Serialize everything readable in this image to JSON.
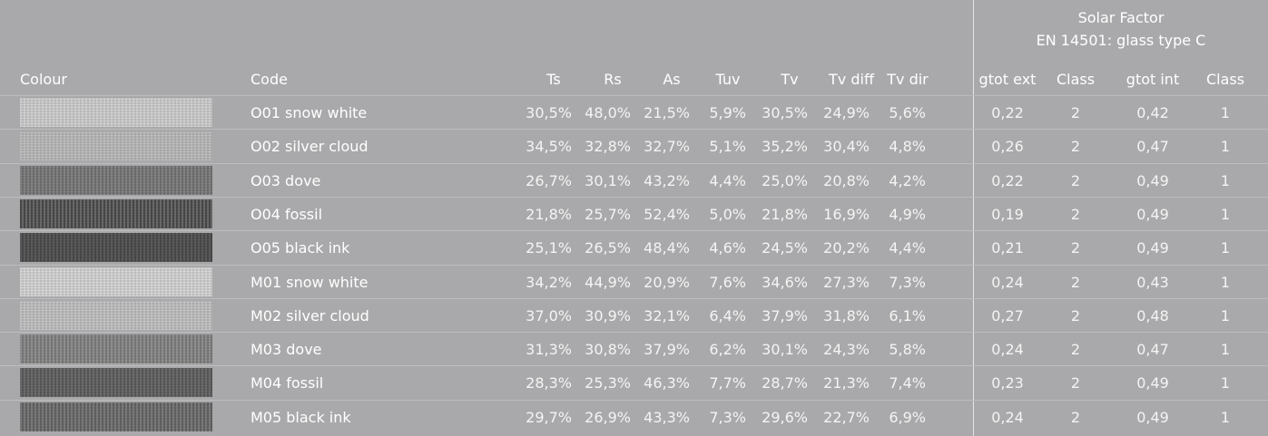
{
  "header_group": {
    "title": "Solar Factor",
    "subtitle": "EN 14501: glass type C"
  },
  "table": {
    "columns": [
      "Colour",
      "Code",
      "Ts",
      "Rs",
      "As",
      "Tuv",
      "Tv",
      "Tv diff",
      "Tv dir",
      "gtot ext",
      "Class",
      "gtot int",
      "Class"
    ],
    "rows": [
      [
        "O01 snow white",
        "30,5%",
        "48,0%",
        "21,5%",
        "5,9%",
        "30,5%",
        "24,9%",
        "5,6%",
        "0,22",
        "2",
        "0,42",
        "1"
      ],
      [
        "O02 silver cloud",
        "34,5%",
        "32,8%",
        "32,7%",
        "5,1%",
        "35,2%",
        "30,4%",
        "4,8%",
        "0,26",
        "2",
        "0,47",
        "1"
      ],
      [
        "O03 dove",
        "26,7%",
        "30,1%",
        "43,2%",
        "4,4%",
        "25,0%",
        "20,8%",
        "4,2%",
        "0,22",
        "2",
        "0,49",
        "1"
      ],
      [
        "O04 fossil",
        "21,8%",
        "25,7%",
        "52,4%",
        "5,0%",
        "21,8%",
        "16,9%",
        "4,9%",
        "0,19",
        "2",
        "0,49",
        "1"
      ],
      [
        "O05 black ink",
        "25,1%",
        "26,5%",
        "48,4%",
        "4,6%",
        "24,5%",
        "20,2%",
        "4,4%",
        "0,21",
        "2",
        "0,49",
        "1"
      ],
      [
        "M01 snow white",
        "34,2%",
        "44,9%",
        "20,9%",
        "7,6%",
        "34,6%",
        "27,3%",
        "7,3%",
        "0,24",
        "2",
        "0,43",
        "1"
      ],
      [
        "M02 silver cloud",
        "37,0%",
        "30,9%",
        "32,1%",
        "6,4%",
        "37,9%",
        "31,8%",
        "6,1%",
        "0,27",
        "2",
        "0,48",
        "1"
      ],
      [
        "M03 dove",
        "31,3%",
        "30,8%",
        "37,9%",
        "6,2%",
        "30,1%",
        "24,3%",
        "5,8%",
        "0,24",
        "2",
        "0,47",
        "1"
      ],
      [
        "M04 fossil",
        "28,3%",
        "25,3%",
        "46,3%",
        "7,7%",
        "28,7%",
        "21,3%",
        "7,4%",
        "0,23",
        "2",
        "0,49",
        "1"
      ],
      [
        "M05 black ink",
        "29,7%",
        "26,9%",
        "43,3%",
        "7,3%",
        "29,6%",
        "22,7%",
        "6,9%",
        "0,24",
        "2",
        "0,49",
        "1"
      ]
    ]
  }
}
